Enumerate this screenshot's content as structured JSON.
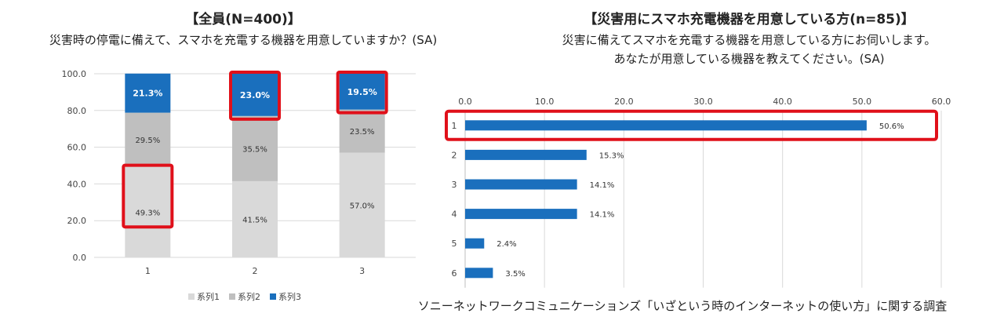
{
  "header": {
    "left_title": "【全員(N=400)】",
    "left_subtitle": "災害時の停電に備えて、スマホを充電する機器を用意していますか？(SA)",
    "right_title": "【災害用にスマホ充電機器を用意している方(n=85)】",
    "right_subtitle_1": "災害に備えてスマホを充電する機器を用意している方にお伺いします。",
    "right_subtitle_2": "あなたが用意している機器を教えてください。(SA)"
  },
  "source_note": "ソニーネットワークコミュニケーションズ「いざという時のインターネットの使い方」に関する調査",
  "colors": {
    "series1": "#d9d9d9",
    "series2": "#bfbfbf",
    "series3": "#1a6fbd",
    "highlight": "#e0101a",
    "grid": "#d9d9d9"
  },
  "chart_data": [
    {
      "type": "bar",
      "stacked": true,
      "title": "【全員(N=400)】",
      "categories": [
        "1",
        "2",
        "3"
      ],
      "series": [
        {
          "name": "系列1",
          "values": [
            49.3,
            41.5,
            57.0
          ],
          "labels": [
            "49.3%",
            "41.5%",
            "57.0%"
          ]
        },
        {
          "name": "系列2",
          "values": [
            29.5,
            35.5,
            23.5
          ],
          "labels": [
            "29.5%",
            "35.5%",
            "23.5%"
          ]
        },
        {
          "name": "系列3",
          "values": [
            21.3,
            23.0,
            19.5
          ],
          "labels": [
            "21.3%",
            "23.0%",
            "19.5%"
          ]
        }
      ],
      "ylim": [
        0,
        100
      ],
      "yticks": [
        "0.0",
        "20.0",
        "40.0",
        "60.0",
        "80.0",
        "100.0"
      ],
      "legend": "bottom",
      "grid": true
    },
    {
      "type": "bar",
      "orientation": "horizontal",
      "title": "【災害用にスマホ充電機器を用意している方(n=85)】",
      "categories": [
        "1",
        "2",
        "3",
        "4",
        "5",
        "6"
      ],
      "values": [
        50.6,
        15.3,
        14.1,
        14.1,
        2.4,
        3.5
      ],
      "labels": [
        "50.6%",
        "15.3%",
        "14.1%",
        "14.1%",
        "2.4%",
        "3.5%"
      ],
      "xlim": [
        0,
        60
      ],
      "xticks": [
        "0.0",
        "10.0",
        "20.0",
        "30.0",
        "40.0",
        "50.0",
        "60.0"
      ],
      "grid": true
    }
  ]
}
